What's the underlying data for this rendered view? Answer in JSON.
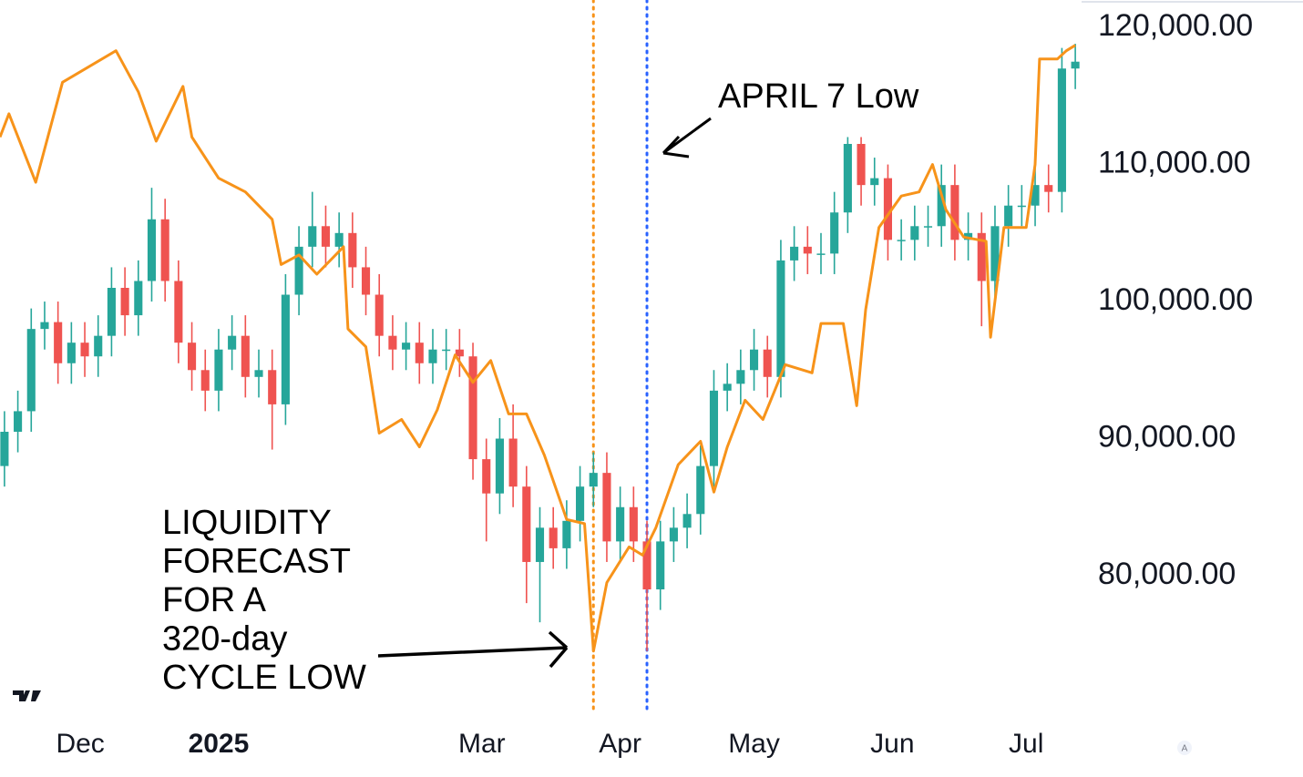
{
  "chart_data": {
    "type": "candlestick",
    "candles": {
      "x": [
        1,
        4,
        7,
        10,
        13,
        16,
        19,
        22,
        25,
        28,
        31,
        34,
        37,
        40,
        43,
        46,
        49,
        52,
        55,
        58,
        61,
        64,
        67,
        70,
        73,
        76,
        79,
        82,
        85,
        88,
        91,
        94,
        97,
        100,
        103,
        106,
        109,
        112,
        115,
        118,
        121,
        124,
        127,
        130,
        133,
        136,
        139,
        142,
        145,
        148,
        151,
        154,
        157,
        160,
        163,
        166,
        169,
        172,
        175,
        178,
        181,
        184,
        187,
        190,
        193,
        196,
        199,
        202,
        205,
        208,
        211,
        214,
        217,
        220,
        223,
        226,
        229,
        232,
        235,
        238,
        241
      ],
      "open": [
        88000,
        90500,
        92000,
        98000,
        98500,
        95500,
        97000,
        96000,
        97500,
        101000,
        99000,
        101500,
        106000,
        101500,
        97000,
        95000,
        93500,
        96500,
        97500,
        94500,
        95000,
        92500,
        100500,
        104000,
        105500,
        104000,
        105000,
        102500,
        100500,
        97500,
        96500,
        97000,
        95500,
        96500,
        96500,
        96000,
        88500,
        86000,
        90000,
        86500,
        81000,
        83500,
        82000,
        84000,
        86500,
        87500,
        82500,
        85000,
        82500,
        79000,
        82500,
        83500,
        84500,
        88000,
        93500,
        94000,
        95000,
        96500,
        94500,
        103000,
        104000,
        103500,
        103500,
        106500,
        111500,
        108500,
        109000,
        104500,
        104500,
        105500,
        105500,
        108500,
        104500,
        105000,
        101500,
        105500,
        107000,
        107000,
        108500,
        108000,
        117000
      ],
      "high": [
        92000,
        93500,
        99500,
        100000,
        100000,
        98500,
        98500,
        99000,
        102500,
        102500,
        103000,
        108300,
        107500,
        103000,
        98500,
        96500,
        98000,
        99000,
        99000,
        96500,
        96500,
        102000,
        105500,
        108000,
        107000,
        106500,
        106500,
        104000,
        102000,
        99000,
        98500,
        98500,
        98000,
        98000,
        98000,
        97000,
        90000,
        91500,
        92500,
        88000,
        85000,
        85000,
        85500,
        88000,
        89000,
        89000,
        86500,
        86500,
        84000,
        84000,
        85000,
        86000,
        89500,
        95000,
        95500,
        96500,
        98000,
        97500,
        104500,
        105500,
        105500,
        105000,
        108000,
        112000,
        112000,
        110500,
        110000,
        106000,
        107000,
        107000,
        110000,
        110000,
        106500,
        106500,
        107000,
        108500,
        108500,
        110000,
        110000,
        118500,
        118800
      ],
      "low": [
        86500,
        89000,
        90500,
        96500,
        94000,
        94000,
        94500,
        94500,
        96000,
        97500,
        97500,
        100000,
        100000,
        95500,
        93500,
        92000,
        92000,
        95000,
        93000,
        93000,
        89200,
        91000,
        99000,
        102500,
        102500,
        102500,
        101000,
        99000,
        96000,
        95000,
        95000,
        94000,
        94000,
        95000,
        94500,
        87000,
        82500,
        84500,
        85000,
        78000,
        76600,
        80500,
        80500,
        82500,
        85000,
        81000,
        81000,
        81000,
        74500,
        77500,
        81000,
        82000,
        83000,
        86500,
        92000,
        92500,
        93500,
        93000,
        93000,
        101500,
        102000,
        102000,
        102000,
        105000,
        107000,
        107000,
        103000,
        103000,
        103000,
        104000,
        104000,
        103000,
        103000,
        98200,
        100000,
        104000,
        105500,
        105500,
        106500,
        106500,
        115500
      ],
      "close": [
        90500,
        92000,
        98000,
        98500,
        95500,
        97000,
        96000,
        97500,
        101000,
        99000,
        101500,
        106000,
        101500,
        97000,
        95000,
        93500,
        96500,
        97500,
        94500,
        95000,
        92500,
        100500,
        104000,
        105500,
        104000,
        105000,
        102500,
        100500,
        97500,
        96500,
        97000,
        95500,
        96500,
        96500,
        96000,
        88500,
        86000,
        90000,
        86500,
        81000,
        83500,
        82000,
        84000,
        86500,
        87500,
        82500,
        85000,
        82500,
        79000,
        82500,
        83500,
        84500,
        88000,
        93500,
        94000,
        95000,
        96500,
        94500,
        103000,
        104000,
        103500,
        103500,
        106500,
        111500,
        108500,
        109000,
        104500,
        104500,
        105500,
        105500,
        108500,
        104500,
        105000,
        101500,
        105500,
        107000,
        107000,
        108500,
        108000,
        117000,
        117500
      ],
      "up_color": "#26a69a",
      "down_color": "#ef5350"
    },
    "line": {
      "color": "#f7931a",
      "x": [
        0,
        2,
        8,
        14,
        26,
        31,
        35,
        41,
        43,
        49,
        55,
        61,
        63,
        67,
        71,
        77,
        78,
        82,
        85,
        90,
        94,
        98,
        102,
        106,
        110,
        114,
        118,
        122,
        127,
        131,
        133,
        136,
        141,
        144,
        147,
        152,
        157,
        160,
        163,
        167,
        171,
        176,
        182,
        184,
        189,
        192,
        194,
        197,
        202,
        206,
        209,
        212,
        216,
        221,
        222,
        225,
        230,
        232,
        233,
        237,
        239,
        241
      ],
      "values": [
        112000,
        113700,
        108700,
        116000,
        118300,
        115300,
        111700,
        115700,
        112000,
        109000,
        108000,
        106000,
        102700,
        103400,
        102000,
        104000,
        98000,
        96700,
        90400,
        91400,
        89400,
        92100,
        96100,
        94100,
        95700,
        91800,
        91800,
        88800,
        84100,
        83800,
        74500,
        79500,
        82100,
        81500,
        83500,
        88100,
        89800,
        86100,
        89400,
        92800,
        91400,
        95400,
        94800,
        98400,
        98400,
        92400,
        99400,
        105400,
        107700,
        108000,
        110000,
        106700,
        104700,
        104400,
        97400,
        105400,
        105400,
        110000,
        117700,
        117700,
        118300,
        118700
      ]
    },
    "vlines": [
      {
        "x": 133,
        "color": "#f7931a"
      },
      {
        "x": 145,
        "color": "#2962ff"
      }
    ],
    "xlim": [
      0,
      242
    ],
    "xticks": [
      {
        "value": 18,
        "label": "Dec"
      },
      {
        "value": 49,
        "label": "2025"
      },
      {
        "value": 108,
        "label": "Mar"
      },
      {
        "value": 139,
        "label": "Apr"
      },
      {
        "value": 169,
        "label": "May"
      },
      {
        "value": 200,
        "label": "Jun"
      },
      {
        "value": 230,
        "label": "Jul"
      }
    ],
    "ylim": [
      69500,
      122000
    ],
    "yticks": [
      {
        "value": 80000,
        "label": "80,000.00"
      },
      {
        "value": 90000,
        "label": "90,000.00"
      },
      {
        "value": 100000,
        "label": "100,000.00"
      },
      {
        "value": 110000,
        "label": "110,000.00"
      },
      {
        "value": 120000,
        "label": "120,000.00"
      }
    ],
    "annotations": {
      "april": "APRIL 7 Low",
      "forecast": [
        "LIQUIDITY",
        "FORECAST",
        "FOR A",
        "320-day",
        "CYCLE LOW"
      ]
    }
  }
}
